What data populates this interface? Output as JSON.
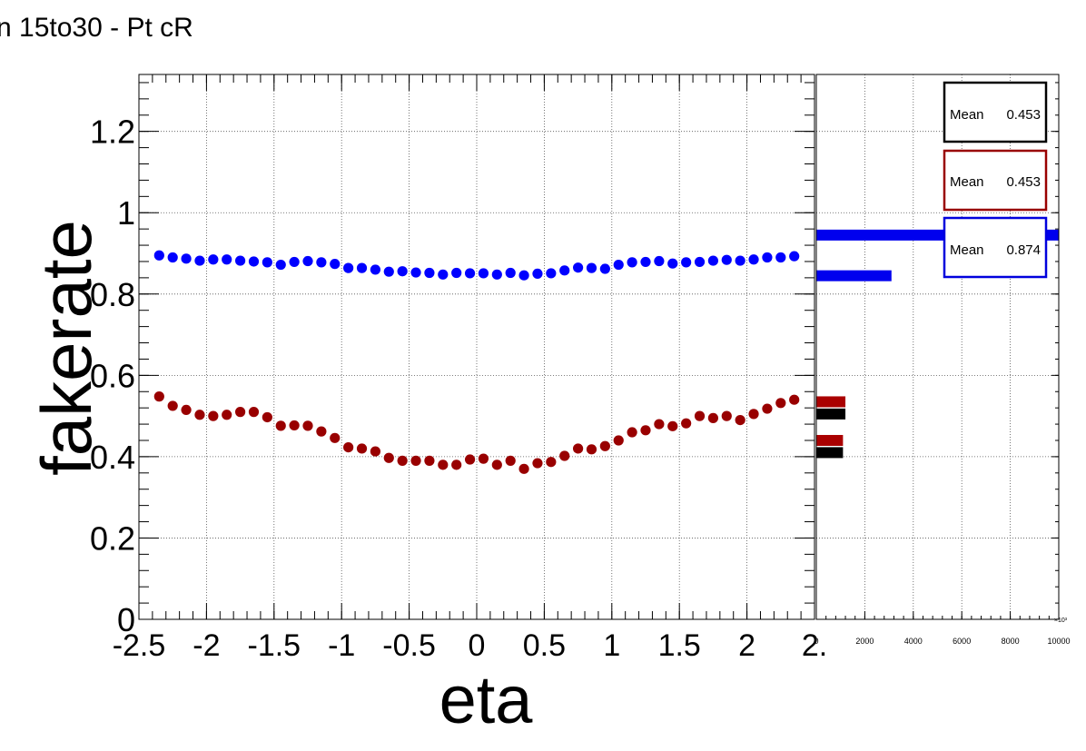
{
  "title": "n 15to30 - Pt cR",
  "chart_data": [
    {
      "type": "scatter",
      "title": "n 15to30 - Pt cR",
      "xlabel": "eta",
      "ylabel": "fakerate",
      "xlim": [
        -2.5,
        2.5
      ],
      "ylim": [
        0,
        1.34
      ],
      "grid": true,
      "x_tick_labels": [
        "-2.5",
        "-2",
        "-1.5",
        "-1",
        "-0.5",
        "0",
        "0.5",
        "1",
        "1.5",
        "2",
        "2."
      ],
      "y_tick_labels": [
        "0",
        "0.2",
        "0.4",
        "0.6",
        "0.8",
        "1",
        "1.2"
      ],
      "x": [
        -2.35,
        -2.25,
        -2.15,
        -2.05,
        -1.95,
        -1.85,
        -1.75,
        -1.65,
        -1.55,
        -1.45,
        -1.35,
        -1.25,
        -1.15,
        -1.05,
        -0.95,
        -0.85,
        -0.75,
        -0.65,
        -0.55,
        -0.45,
        -0.35,
        -0.25,
        -0.15,
        -0.05,
        0.05,
        0.15,
        0.25,
        0.35,
        0.45,
        0.55,
        0.65,
        0.75,
        0.85,
        0.95,
        1.05,
        1.15,
        1.25,
        1.35,
        1.45,
        1.55,
        1.65,
        1.75,
        1.85,
        1.95,
        2.05,
        2.15,
        2.25,
        2.35
      ],
      "series": [
        {
          "color": "#0000ff",
          "values": [
            0.895,
            0.89,
            0.887,
            0.882,
            0.885,
            0.885,
            0.882,
            0.88,
            0.878,
            0.872,
            0.879,
            0.881,
            0.878,
            0.874,
            0.864,
            0.864,
            0.86,
            0.855,
            0.856,
            0.853,
            0.852,
            0.848,
            0.852,
            0.851,
            0.851,
            0.848,
            0.852,
            0.846,
            0.85,
            0.851,
            0.858,
            0.865,
            0.864,
            0.862,
            0.872,
            0.878,
            0.879,
            0.881,
            0.875,
            0.878,
            0.879,
            0.882,
            0.884,
            0.882,
            0.885,
            0.89,
            0.89,
            0.893
          ]
        },
        {
          "color": "#990000",
          "values": [
            0.548,
            0.525,
            0.515,
            0.503,
            0.5,
            0.503,
            0.51,
            0.51,
            0.497,
            0.476,
            0.477,
            0.476,
            0.462,
            0.446,
            0.423,
            0.42,
            0.413,
            0.397,
            0.39,
            0.39,
            0.39,
            0.38,
            0.38,
            0.393,
            0.395,
            0.38,
            0.39,
            0.37,
            0.384,
            0.387,
            0.402,
            0.42,
            0.418,
            0.426,
            0.44,
            0.46,
            0.465,
            0.48,
            0.475,
            0.482,
            0.5,
            0.495,
            0.5,
            0.49,
            0.505,
            0.518,
            0.532,
            0.54
          ]
        }
      ]
    },
    {
      "type": "bar",
      "orientation": "horizontal",
      "xlim": [
        0,
        10000
      ],
      "x_tick_labels": [
        "0",
        "2000",
        "4000",
        "6000",
        "8000",
        "10000"
      ],
      "x_exponent_label": "×10³",
      "ylim": [
        0,
        1.34
      ],
      "series": [
        {
          "color": "#000000",
          "bars": [
            {
              "y": 0.505,
              "value": 1200
            },
            {
              "y": 0.41,
              "value": 1100
            }
          ]
        },
        {
          "color": "#aa0000",
          "bars": [
            {
              "y": 0.535,
              "value": 1200
            },
            {
              "y": 0.44,
              "value": 1100
            }
          ]
        },
        {
          "color": "#0000ee",
          "bars": [
            {
              "y": 0.945,
              "value": 10000
            },
            {
              "y": 0.845,
              "value": 3100
            }
          ]
        }
      ]
    }
  ],
  "stats_boxes": [
    {
      "label": "Mean",
      "value": "0.453",
      "color": "#000000"
    },
    {
      "label": "Mean",
      "value": "0.453",
      "color": "#990000"
    },
    {
      "label": "Mean",
      "value": "0.874",
      "color": "#0000dd"
    }
  ]
}
